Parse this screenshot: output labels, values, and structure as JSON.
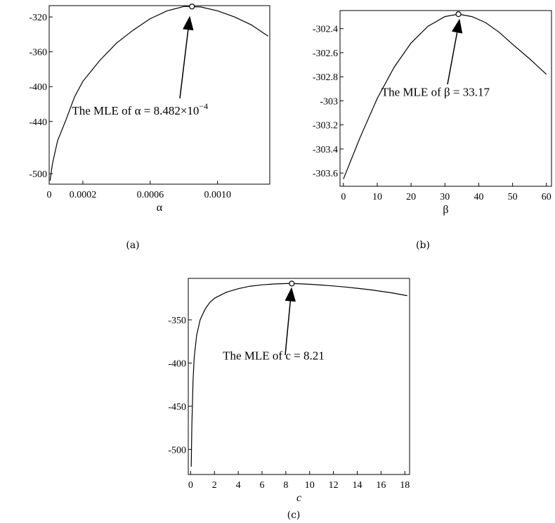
{
  "chart_data": [
    {
      "type": "line",
      "caption": "(a)",
      "xlabel": "α",
      "ylabel": "",
      "xlim": [
        0,
        0.00131
      ],
      "ylim": [
        -512,
        -307
      ],
      "xticks": [
        {
          "v": 0,
          "t": "0"
        },
        {
          "v": 0.0002,
          "t": "0.0002"
        },
        {
          "v": 0.0006,
          "t": "0.0006"
        },
        {
          "v": 0.001,
          "t": "0.0010"
        }
      ],
      "yticks": [
        {
          "v": -320,
          "t": "-320"
        },
        {
          "v": -360,
          "t": "-360"
        },
        {
          "v": -400,
          "t": "-400"
        },
        {
          "v": -440,
          "t": "-440"
        },
        {
          "v": -500,
          "t": "-500"
        }
      ],
      "series": [
        {
          "x": [
            5e-06,
            2e-05,
            5e-05,
            0.0001,
            0.00015,
            0.0002,
            0.0003,
            0.0004,
            0.0005,
            0.0006,
            0.0007,
            0.0008,
            0.0009,
            0.001,
            0.0011,
            0.0012,
            0.0013
          ],
          "y": [
            -508,
            -488,
            -462,
            -438,
            -412,
            -394,
            -370,
            -350,
            -335,
            -322,
            -313,
            -308,
            -308.5,
            -313,
            -320,
            -329,
            -342
          ]
        }
      ],
      "mle": {
        "x": 0.000848,
        "y": -308
      },
      "annotation": {
        "main": "The MLE of α = 8.482×10",
        "sup": "−4",
        "x": 0.000135,
        "y": -432
      }
    },
    {
      "type": "line",
      "caption": "(b)",
      "xlabel": "β",
      "ylabel": "",
      "xlim": [
        -1,
        61.5
      ],
      "ylim": [
        -303.71,
        -302.25
      ],
      "xticks": [
        {
          "v": 0,
          "t": "0"
        },
        {
          "v": 10,
          "t": "10"
        },
        {
          "v": 20,
          "t": "20"
        },
        {
          "v": 30,
          "t": "30"
        },
        {
          "v": 40,
          "t": "40"
        },
        {
          "v": 50,
          "t": "50"
        },
        {
          "v": 60,
          "t": "60"
        }
      ],
      "yticks": [
        {
          "v": -302.4,
          "t": "-302.4"
        },
        {
          "v": -302.6,
          "t": "-302.6"
        },
        {
          "v": -302.8,
          "t": "-302.8"
        },
        {
          "v": -303,
          "t": "-303"
        },
        {
          "v": -303.2,
          "t": "-303.2"
        },
        {
          "v": -303.4,
          "t": "-303.4"
        },
        {
          "v": -303.6,
          "t": "-303.6"
        }
      ],
      "series": [
        {
          "x": [
            0,
            5,
            10,
            15,
            20,
            25,
            30,
            34,
            38,
            42,
            46,
            50,
            55,
            60
          ],
          "y": [
            -303.65,
            -303.3,
            -302.98,
            -302.72,
            -302.52,
            -302.38,
            -302.3,
            -302.28,
            -302.3,
            -302.35,
            -302.43,
            -302.53,
            -302.65,
            -302.78
          ]
        }
      ],
      "mle": {
        "x": 34,
        "y": -302.28
      },
      "annotation": {
        "main": "The MLE of β = 33.17",
        "sup": "",
        "x": 11.2,
        "y": -302.96
      }
    },
    {
      "type": "line",
      "caption": "(c)",
      "xlabel": "c",
      "ylabel": "",
      "xlim": [
        -0.2,
        18.4
      ],
      "ylim": [
        -529,
        -302
      ],
      "xticks": [
        {
          "v": 0,
          "t": "0"
        },
        {
          "v": 2,
          "t": "2"
        },
        {
          "v": 4,
          "t": "4"
        },
        {
          "v": 6,
          "t": "6"
        },
        {
          "v": 8,
          "t": "8"
        },
        {
          "v": 10,
          "t": "10"
        },
        {
          "v": 12,
          "t": "12"
        },
        {
          "v": 14,
          "t": "14"
        },
        {
          "v": 16,
          "t": "16"
        },
        {
          "v": 18,
          "t": "18"
        }
      ],
      "yticks": [
        {
          "v": -350,
          "t": "-350"
        },
        {
          "v": -400,
          "t": "-400"
        },
        {
          "v": -450,
          "t": "-450"
        },
        {
          "v": -500,
          "t": "-500"
        }
      ],
      "series": [
        {
          "x": [
            0.05,
            0.1,
            0.2,
            0.3,
            0.5,
            0.8,
            1.2,
            1.6,
            2,
            3,
            4,
            5,
            6,
            7,
            8,
            8.5,
            9,
            10,
            11,
            12,
            13,
            14,
            15,
            16,
            17,
            18.2
          ],
          "y": [
            -520,
            -472,
            -420,
            -393,
            -368,
            -350,
            -338,
            -330,
            -325,
            -318,
            -314,
            -311,
            -309.5,
            -308.5,
            -308,
            -308,
            -308.2,
            -308.8,
            -309.7,
            -310.8,
            -312,
            -313.5,
            -315,
            -317,
            -319,
            -322
          ]
        }
      ],
      "mle": {
        "x": 8.5,
        "y": -308
      },
      "annotation": {
        "main": "The MLE of c = 8.21",
        "sup": "",
        "x": 2.7,
        "y": -396
      }
    }
  ]
}
